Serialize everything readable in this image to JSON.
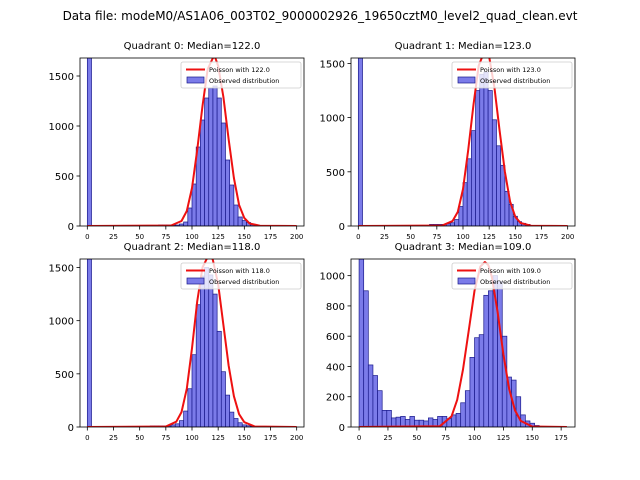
{
  "suptitle": "Data file: modeM0/AS1A06_003T02_9000002926_19650cztM0_level2_quad_clean.evt",
  "colors": {
    "bar_fill": "#7b7be9",
    "bar_edge": "#1a1a8c",
    "poisson_line": "#ee1111",
    "axis": "#000000"
  },
  "chart_data": [
    {
      "type": "bar",
      "title": "Quadrant 0: Median=122.0",
      "legend": {
        "poisson_label": "Poisson with 122.0",
        "observed_label": "Observed distribution",
        "placement": "top-right"
      },
      "median": 122.0,
      "xlim": [
        -7,
        207
      ],
      "ylim": [
        0,
        1680
      ],
      "xticks": [
        "0",
        "25",
        "50",
        "75",
        "100",
        "125",
        "150",
        "175",
        "200"
      ],
      "yticks": [
        "0",
        "500",
        "1000",
        "1500"
      ],
      "bin_width": 4,
      "bins": [
        {
          "x": 0,
          "count": 1680
        },
        {
          "x": 68,
          "count": 10
        },
        {
          "x": 72,
          "count": 10
        },
        {
          "x": 76,
          "count": 10
        },
        {
          "x": 80,
          "count": 10
        },
        {
          "x": 84,
          "count": 10
        },
        {
          "x": 88,
          "count": 20
        },
        {
          "x": 92,
          "count": 40
        },
        {
          "x": 96,
          "count": 180
        },
        {
          "x": 100,
          "count": 420
        },
        {
          "x": 104,
          "count": 790
        },
        {
          "x": 108,
          "count": 1060
        },
        {
          "x": 112,
          "count": 1280
        },
        {
          "x": 116,
          "count": 1380
        },
        {
          "x": 120,
          "count": 1400
        },
        {
          "x": 124,
          "count": 1280
        },
        {
          "x": 128,
          "count": 1030
        },
        {
          "x": 132,
          "count": 660
        },
        {
          "x": 136,
          "count": 410
        },
        {
          "x": 140,
          "count": 210
        },
        {
          "x": 144,
          "count": 90
        },
        {
          "x": 148,
          "count": 55
        },
        {
          "x": 152,
          "count": 35
        },
        {
          "x": 156,
          "count": 12
        },
        {
          "x": 160,
          "count": 8
        }
      ],
      "poisson": {
        "x": [
          0,
          80,
          90,
          95,
          100,
          105,
          110,
          115,
          120,
          122,
          125,
          130,
          135,
          140,
          145,
          150,
          155,
          165,
          200
        ],
        "y": [
          0,
          5,
          50,
          150,
          380,
          760,
          1200,
          1570,
          1680,
          1690,
          1600,
          1290,
          870,
          480,
          210,
          80,
          25,
          3,
          0
        ]
      }
    },
    {
      "type": "bar",
      "title": "Quadrant 1: Median=123.0",
      "legend": {
        "poisson_label": "Poisson with 123.0",
        "observed_label": "Observed distribution",
        "placement": "top-right"
      },
      "median": 123.0,
      "xlim": [
        -7,
        207
      ],
      "ylim": [
        0,
        1550
      ],
      "xticks": [
        "0",
        "25",
        "50",
        "75",
        "100",
        "125",
        "150",
        "175",
        "200"
      ],
      "yticks": [
        "0",
        "500",
        "1000",
        "1500"
      ],
      "bin_width": 4,
      "bins": [
        {
          "x": 0,
          "count": 1550
        },
        {
          "x": 68,
          "count": 15
        },
        {
          "x": 72,
          "count": 15
        },
        {
          "x": 76,
          "count": 15
        },
        {
          "x": 80,
          "count": 15
        },
        {
          "x": 84,
          "count": 20
        },
        {
          "x": 88,
          "count": 30
        },
        {
          "x": 92,
          "count": 60
        },
        {
          "x": 96,
          "count": 180
        },
        {
          "x": 100,
          "count": 400
        },
        {
          "x": 104,
          "count": 620
        },
        {
          "x": 108,
          "count": 880
        },
        {
          "x": 112,
          "count": 1250
        },
        {
          "x": 116,
          "count": 1400
        },
        {
          "x": 120,
          "count": 1420
        },
        {
          "x": 124,
          "count": 1250
        },
        {
          "x": 128,
          "count": 980
        },
        {
          "x": 132,
          "count": 740
        },
        {
          "x": 136,
          "count": 560
        },
        {
          "x": 140,
          "count": 320
        },
        {
          "x": 144,
          "count": 200
        },
        {
          "x": 148,
          "count": 90
        },
        {
          "x": 152,
          "count": 40
        },
        {
          "x": 156,
          "count": 25
        },
        {
          "x": 160,
          "count": 15
        },
        {
          "x": 164,
          "count": 5
        }
      ],
      "poisson": {
        "x": [
          0,
          80,
          90,
          95,
          100,
          105,
          110,
          115,
          120,
          123,
          125,
          130,
          135,
          140,
          145,
          150,
          155,
          165,
          200
        ],
        "y": [
          0,
          5,
          45,
          130,
          340,
          700,
          1120,
          1480,
          1600,
          1610,
          1560,
          1280,
          880,
          500,
          225,
          85,
          28,
          3,
          0
        ]
      }
    },
    {
      "type": "bar",
      "title": "Quadrant 2: Median=118.0",
      "legend": {
        "poisson_label": "Poisson with 118.0",
        "observed_label": "Observed distribution",
        "placement": "top-right"
      },
      "median": 118.0,
      "xlim": [
        -7,
        207
      ],
      "ylim": [
        0,
        1580
      ],
      "xticks": [
        "0",
        "25",
        "50",
        "75",
        "100",
        "125",
        "150",
        "175",
        "200"
      ],
      "yticks": [
        "0",
        "500",
        "1000",
        "1500"
      ],
      "bin_width": 4,
      "bins": [
        {
          "x": 0,
          "count": 1580
        },
        {
          "x": 60,
          "count": 10
        },
        {
          "x": 64,
          "count": 10
        },
        {
          "x": 68,
          "count": 10
        },
        {
          "x": 72,
          "count": 10
        },
        {
          "x": 76,
          "count": 10
        },
        {
          "x": 80,
          "count": 20
        },
        {
          "x": 84,
          "count": 30
        },
        {
          "x": 88,
          "count": 60
        },
        {
          "x": 92,
          "count": 150
        },
        {
          "x": 96,
          "count": 360
        },
        {
          "x": 100,
          "count": 680
        },
        {
          "x": 104,
          "count": 1150
        },
        {
          "x": 108,
          "count": 1420
        },
        {
          "x": 112,
          "count": 1500
        },
        {
          "x": 116,
          "count": 1430
        },
        {
          "x": 120,
          "count": 1250
        },
        {
          "x": 124,
          "count": 900
        },
        {
          "x": 128,
          "count": 520
        },
        {
          "x": 132,
          "count": 300
        },
        {
          "x": 136,
          "count": 140
        },
        {
          "x": 140,
          "count": 80
        },
        {
          "x": 144,
          "count": 40
        },
        {
          "x": 148,
          "count": 20
        },
        {
          "x": 152,
          "count": 12
        },
        {
          "x": 156,
          "count": 8
        }
      ],
      "poisson": {
        "x": [
          0,
          75,
          85,
          90,
          95,
          100,
          105,
          110,
          115,
          118,
          120,
          125,
          130,
          135,
          140,
          145,
          150,
          160,
          200
        ],
        "y": [
          0,
          5,
          50,
          140,
          360,
          740,
          1180,
          1500,
          1600,
          1620,
          1570,
          1340,
          960,
          580,
          290,
          120,
          45,
          5,
          0
        ]
      }
    },
    {
      "type": "bar",
      "title": "Quadrant 3: Median=109.0",
      "legend": {
        "poisson_label": "Poisson with 109.0",
        "observed_label": "Observed distribution",
        "placement": "top-right"
      },
      "median": 109.0,
      "xlim": [
        -7,
        187
      ],
      "ylim": [
        0,
        1110
      ],
      "xticks": [
        "0",
        "25",
        "50",
        "75",
        "100",
        "125",
        "150",
        "175"
      ],
      "yticks": [
        "0",
        "200",
        "400",
        "600",
        "800",
        "1000"
      ],
      "bin_width": 4,
      "bins": [
        {
          "x": 0,
          "count": 1110
        },
        {
          "x": 4,
          "count": 900
        },
        {
          "x": 8,
          "count": 410
        },
        {
          "x": 12,
          "count": 340
        },
        {
          "x": 16,
          "count": 240
        },
        {
          "x": 20,
          "count": 110
        },
        {
          "x": 24,
          "count": 110
        },
        {
          "x": 28,
          "count": 60
        },
        {
          "x": 32,
          "count": 65
        },
        {
          "x": 36,
          "count": 70
        },
        {
          "x": 40,
          "count": 50
        },
        {
          "x": 44,
          "count": 70
        },
        {
          "x": 48,
          "count": 45
        },
        {
          "x": 52,
          "count": 45
        },
        {
          "x": 56,
          "count": 40
        },
        {
          "x": 60,
          "count": 60
        },
        {
          "x": 64,
          "count": 50
        },
        {
          "x": 68,
          "count": 70
        },
        {
          "x": 72,
          "count": 70
        },
        {
          "x": 76,
          "count": 55
        },
        {
          "x": 80,
          "count": 80
        },
        {
          "x": 84,
          "count": 90
        },
        {
          "x": 88,
          "count": 160
        },
        {
          "x": 92,
          "count": 240
        },
        {
          "x": 96,
          "count": 460
        },
        {
          "x": 100,
          "count": 590
        },
        {
          "x": 104,
          "count": 610
        },
        {
          "x": 108,
          "count": 870
        },
        {
          "x": 112,
          "count": 900
        },
        {
          "x": 116,
          "count": 1000
        },
        {
          "x": 120,
          "count": 960
        },
        {
          "x": 124,
          "count": 600
        },
        {
          "x": 128,
          "count": 330
        },
        {
          "x": 132,
          "count": 310
        },
        {
          "x": 136,
          "count": 200
        },
        {
          "x": 140,
          "count": 80
        },
        {
          "x": 144,
          "count": 40
        },
        {
          "x": 148,
          "count": 25
        },
        {
          "x": 152,
          "count": 10
        }
      ],
      "poisson": {
        "x": [
          0,
          70,
          80,
          85,
          90,
          95,
          100,
          105,
          109,
          112,
          115,
          120,
          125,
          130,
          135,
          140,
          150,
          180
        ],
        "y": [
          0,
          5,
          70,
          180,
          380,
          640,
          900,
          1060,
          1090,
          1070,
          990,
          760,
          480,
          250,
          110,
          40,
          3,
          0
        ]
      }
    }
  ]
}
